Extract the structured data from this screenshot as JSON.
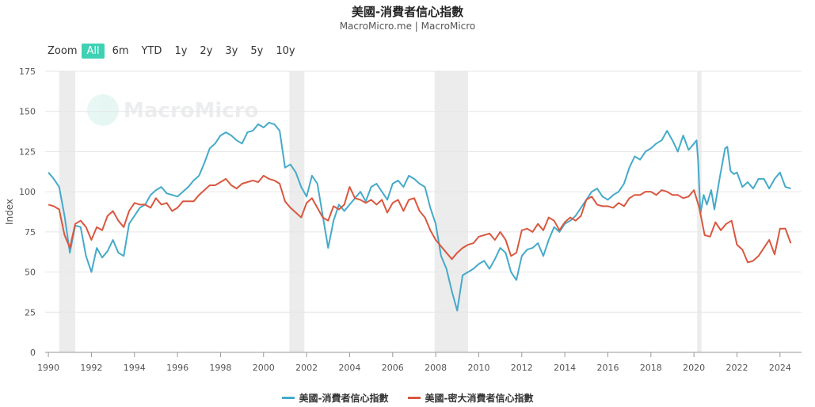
{
  "header": {
    "title": "美國-消費者信心指數",
    "subtitle": "MacroMicro.me | MacroMicro"
  },
  "zoom": {
    "label": "Zoom",
    "buttons": [
      "All",
      "6m",
      "YTD",
      "1y",
      "2y",
      "3y",
      "5y",
      "10y"
    ],
    "active": "All"
  },
  "watermark": "MacroMicro",
  "colors": {
    "series1": "#45aac9",
    "series2": "#d9573f",
    "recession": "#ececec",
    "zoom_active": "#3fd1b3"
  },
  "chart_data": {
    "type": "line",
    "ylabel": "Index",
    "xlabel": "",
    "ylim": [
      0,
      175
    ],
    "xlim": [
      1989.85,
      2025.0
    ],
    "yticks": [
      0,
      25,
      50,
      75,
      100,
      125,
      150,
      175
    ],
    "xticks": [
      1990,
      1992,
      1994,
      1996,
      1998,
      2000,
      2002,
      2004,
      2006,
      2008,
      2010,
      2012,
      2014,
      2016,
      2018,
      2020,
      2022,
      2024
    ],
    "grid": true,
    "legend_position": "bottom",
    "recessions": [
      [
        1990.5,
        1991.25
      ],
      [
        2001.2,
        2001.9
      ],
      [
        2007.95,
        2009.5
      ],
      [
        2020.15,
        2020.35
      ]
    ],
    "series": [
      {
        "name": "美國-消費者信心指數",
        "color": "#45aac9",
        "x": [
          1990.0,
          1990.25,
          1990.5,
          1990.75,
          1991.0,
          1991.25,
          1991.5,
          1991.75,
          1992.0,
          1992.25,
          1992.5,
          1992.75,
          1993.0,
          1993.25,
          1993.5,
          1993.75,
          1994.0,
          1994.25,
          1994.5,
          1994.75,
          1995.0,
          1995.25,
          1995.5,
          1995.75,
          1996.0,
          1996.25,
          1996.5,
          1996.75,
          1997.0,
          1997.25,
          1997.5,
          1997.75,
          1998.0,
          1998.25,
          1998.5,
          1998.75,
          1999.0,
          1999.25,
          1999.5,
          1999.75,
          2000.0,
          2000.25,
          2000.5,
          2000.75,
          2001.0,
          2001.25,
          2001.5,
          2001.75,
          2002.0,
          2002.25,
          2002.5,
          2002.75,
          2003.0,
          2003.25,
          2003.5,
          2003.75,
          2004.0,
          2004.25,
          2004.5,
          2004.75,
          2005.0,
          2005.25,
          2005.5,
          2005.75,
          2006.0,
          2006.25,
          2006.5,
          2006.75,
          2007.0,
          2007.25,
          2007.5,
          2007.75,
          2008.0,
          2008.25,
          2008.5,
          2008.75,
          2009.0,
          2009.25,
          2009.5,
          2009.75,
          2010.0,
          2010.25,
          2010.5,
          2010.75,
          2011.0,
          2011.25,
          2011.5,
          2011.75,
          2012.0,
          2012.25,
          2012.5,
          2012.75,
          2013.0,
          2013.25,
          2013.5,
          2013.75,
          2014.0,
          2014.25,
          2014.5,
          2014.75,
          2015.0,
          2015.25,
          2015.5,
          2015.75,
          2016.0,
          2016.25,
          2016.5,
          2016.75,
          2017.0,
          2017.25,
          2017.5,
          2017.75,
          2018.0,
          2018.25,
          2018.5,
          2018.75,
          2019.0,
          2019.25,
          2019.5,
          2019.75,
          2020.0,
          2020.25,
          2020.5,
          2020.75,
          2021.0,
          2021.25,
          2021.5,
          2021.75,
          2022.0,
          2022.25,
          2022.5,
          2022.75,
          2023.0,
          2023.25,
          2023.5,
          2023.75,
          2024.0,
          2024.25,
          2024.5
        ],
        "values": [
          112,
          108,
          103,
          85,
          62,
          79,
          78,
          60,
          50,
          65,
          59,
          63,
          70,
          62,
          60,
          80,
          85,
          90,
          92,
          98,
          101,
          103,
          99,
          98,
          97,
          100,
          103,
          107,
          110,
          118,
          127,
          130,
          135,
          137,
          135,
          132,
          130,
          137,
          138,
          142,
          140,
          143,
          142,
          138,
          115,
          117,
          112,
          103,
          97,
          110,
          105,
          85,
          65,
          82,
          92,
          88,
          92,
          96,
          100,
          94,
          103,
          105,
          100,
          95,
          105,
          107,
          103,
          110,
          108,
          105,
          103,
          90,
          80,
          60,
          52,
          38,
          26,
          48,
          50,
          52,
          55,
          57,
          52,
          58,
          65,
          62,
          50,
          45,
          60,
          64,
          65,
          68,
          60,
          70,
          78,
          75,
          80,
          82,
          85,
          90,
          95,
          100,
          102,
          97,
          95,
          98,
          100,
          105,
          115,
          122,
          120,
          125,
          127,
          130,
          132,
          138,
          132,
          125,
          127,
          132,
          130,
          120,
          88,
          99,
          85,
          110,
          125,
          118,
          112,
          103,
          106,
          102,
          108,
          108,
          102,
          108,
          112,
          103,
          102
        ],
        "extra": {
          "dense_points_2019_2021": [
            [
              2019.5,
              135
            ],
            [
              2019.75,
              126
            ],
            [
              2020.0,
              130
            ],
            [
              2020.125,
              132
            ],
            [
              2020.2,
              118
            ],
            [
              2020.3,
              86
            ],
            [
              2020.45,
              98
            ],
            [
              2020.6,
              92
            ],
            [
              2020.8,
              101
            ],
            [
              2020.95,
              89
            ],
            [
              2021.2,
              109
            ],
            [
              2021.45,
              127
            ],
            [
              2021.55,
              128
            ],
            [
              2021.7,
              113
            ],
            [
              2021.85,
              111
            ]
          ]
        }
      },
      {
        "name": "美國-密大消費者信心指數",
        "color": "#d9573f",
        "x": [
          1990.0,
          1990.25,
          1990.5,
          1990.75,
          1991.0,
          1991.25,
          1991.5,
          1991.75,
          1992.0,
          1992.25,
          1992.5,
          1992.75,
          1993.0,
          1993.25,
          1993.5,
          1993.75,
          1994.0,
          1994.25,
          1994.5,
          1994.75,
          1995.0,
          1995.25,
          1995.5,
          1995.75,
          1996.0,
          1996.25,
          1996.5,
          1996.75,
          1997.0,
          1997.25,
          1997.5,
          1997.75,
          1998.0,
          1998.25,
          1998.5,
          1998.75,
          1999.0,
          1999.25,
          1999.5,
          1999.75,
          2000.0,
          2000.25,
          2000.5,
          2000.75,
          2001.0,
          2001.25,
          2001.5,
          2001.75,
          2002.0,
          2002.25,
          2002.5,
          2002.75,
          2003.0,
          2003.25,
          2003.5,
          2003.75,
          2004.0,
          2004.25,
          2004.5,
          2004.75,
          2005.0,
          2005.25,
          2005.5,
          2005.75,
          2006.0,
          2006.25,
          2006.5,
          2006.75,
          2007.0,
          2007.25,
          2007.5,
          2007.75,
          2008.0,
          2008.25,
          2008.5,
          2008.75,
          2009.0,
          2009.25,
          2009.5,
          2009.75,
          2010.0,
          2010.25,
          2010.5,
          2010.75,
          2011.0,
          2011.25,
          2011.5,
          2011.75,
          2012.0,
          2012.25,
          2012.5,
          2012.75,
          2013.0,
          2013.25,
          2013.5,
          2013.75,
          2014.0,
          2014.25,
          2014.5,
          2014.75,
          2015.0,
          2015.25,
          2015.5,
          2015.75,
          2016.0,
          2016.25,
          2016.5,
          2016.75,
          2017.0,
          2017.25,
          2017.5,
          2017.75,
          2018.0,
          2018.25,
          2018.5,
          2018.75,
          2019.0,
          2019.25,
          2019.5,
          2019.75,
          2020.0,
          2020.25,
          2020.5,
          2020.75,
          2021.0,
          2021.25,
          2021.5,
          2021.75,
          2022.0,
          2022.25,
          2022.5,
          2022.75,
          2023.0,
          2023.25,
          2023.5,
          2023.75,
          2024.0,
          2024.25,
          2024.5
        ],
        "values": [
          92,
          91,
          89,
          73,
          65,
          80,
          82,
          78,
          70,
          78,
          76,
          85,
          88,
          82,
          78,
          88,
          93,
          92,
          92,
          90,
          96,
          92,
          93,
          88,
          90,
          94,
          94,
          94,
          98,
          101,
          104,
          104,
          106,
          108,
          104,
          102,
          105,
          106,
          107,
          106,
          110,
          108,
          107,
          105,
          94,
          90,
          87,
          84,
          93,
          96,
          90,
          84,
          82,
          91,
          89,
          92,
          103,
          96,
          95,
          93,
          95,
          92,
          95,
          87,
          93,
          95,
          88,
          95,
          96,
          88,
          84,
          76,
          70,
          66,
          62,
          58,
          62,
          65,
          67,
          68,
          72,
          73,
          74,
          70,
          75,
          70,
          60,
          62,
          76,
          77,
          75,
          80,
          76,
          84,
          82,
          76,
          81,
          84,
          82,
          85,
          95,
          97,
          92,
          91,
          91,
          90,
          93,
          91,
          96,
          98,
          98,
          100,
          100,
          98,
          101,
          100,
          98,
          98,
          96,
          97,
          101,
          90,
          73,
          72,
          81,
          76,
          80,
          82,
          67,
          64,
          56,
          57,
          60,
          65,
          70,
          61,
          77,
          77,
          68
        ],
        "extra": {}
      }
    ]
  }
}
